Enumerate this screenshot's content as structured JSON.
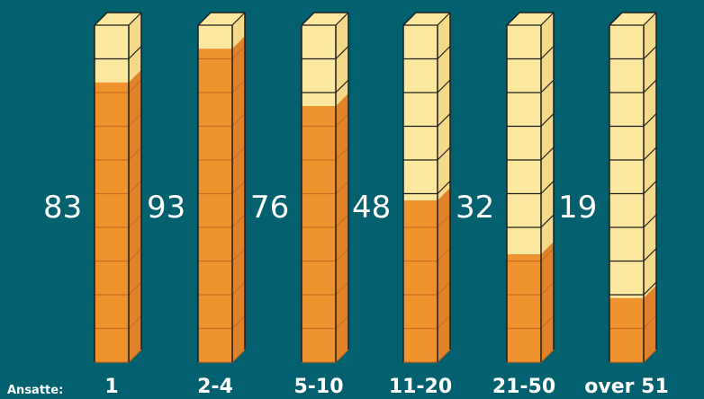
{
  "chart_data": {
    "type": "bar",
    "xlabel": "Ansatte:",
    "categories": [
      "1",
      "2-4",
      "5-10",
      "11-20",
      "21-50",
      "over 51"
    ],
    "values": [
      83,
      93,
      76,
      48,
      32,
      19
    ],
    "ylim": [
      0,
      100
    ],
    "value_labels": [
      "83",
      "93",
      "76",
      "48",
      "32",
      "19"
    ],
    "colors": {
      "background": "#03606f",
      "empty_face": "#fde8a0",
      "empty_side": "#f4d98a",
      "fill_face": "#f0922e",
      "fill_side": "#e0822a",
      "outline": "#1e1e1e"
    }
  }
}
